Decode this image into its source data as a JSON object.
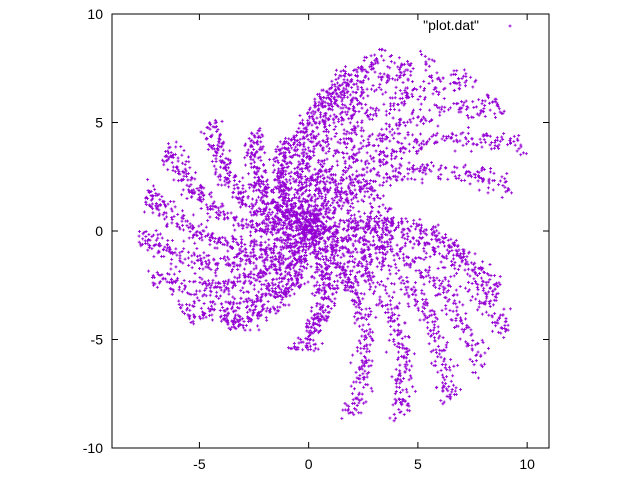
{
  "chart_data": {
    "type": "scatter",
    "title": "",
    "xlabel": "",
    "ylabel": "",
    "xlim": [
      -9,
      11
    ],
    "ylim": [
      -10,
      10
    ],
    "x_ticks": [
      "-5",
      "0",
      "5",
      "10"
    ],
    "y_ticks": [
      "-10",
      "-5",
      "0",
      "5",
      "10"
    ],
    "grid": false,
    "legend": "top-right",
    "series": [
      {
        "name": "\"plot.dat\"",
        "color": "#9400d3",
        "marker": "plus",
        "shape": "spiral galaxy of curved arms radiating from center",
        "arms": [
          {
            "tip": [
              -6.5,
              3.8
            ]
          },
          {
            "tip": [
              -7.5,
              1.8
            ]
          },
          {
            "tip": [
              -7.8,
              -0.2
            ]
          },
          {
            "tip": [
              -7.2,
              -2.2
            ]
          },
          {
            "tip": [
              -5.8,
              -3.8
            ]
          },
          {
            "tip": [
              -3.8,
              -4.4
            ]
          },
          {
            "tip": [
              -4.5,
              5.0
            ]
          },
          {
            "tip": [
              -2.5,
              4.6
            ]
          },
          {
            "tip": [
              -0.8,
              4.3
            ]
          },
          {
            "tip": [
              2.0,
              7.5
            ]
          },
          {
            "tip": [
              3.8,
              8.2
            ]
          },
          {
            "tip": [
              5.6,
              8.0
            ]
          },
          {
            "tip": [
              7.4,
              7.2
            ]
          },
          {
            "tip": [
              8.8,
              5.8
            ]
          },
          {
            "tip": [
              9.8,
              4.0
            ]
          },
          {
            "tip": [
              9.2,
              2.0
            ]
          },
          {
            "tip": [
              2.0,
              -8.5
            ]
          },
          {
            "tip": [
              4.3,
              -8.5
            ]
          },
          {
            "tip": [
              6.5,
              -7.8
            ]
          },
          {
            "tip": [
              8.0,
              -6.4
            ]
          },
          {
            "tip": [
              9.1,
              -4.6
            ]
          },
          {
            "tip": [
              8.8,
              -2.8
            ]
          },
          {
            "tip": [
              -0.4,
              -5.5
            ]
          }
        ]
      }
    ]
  }
}
